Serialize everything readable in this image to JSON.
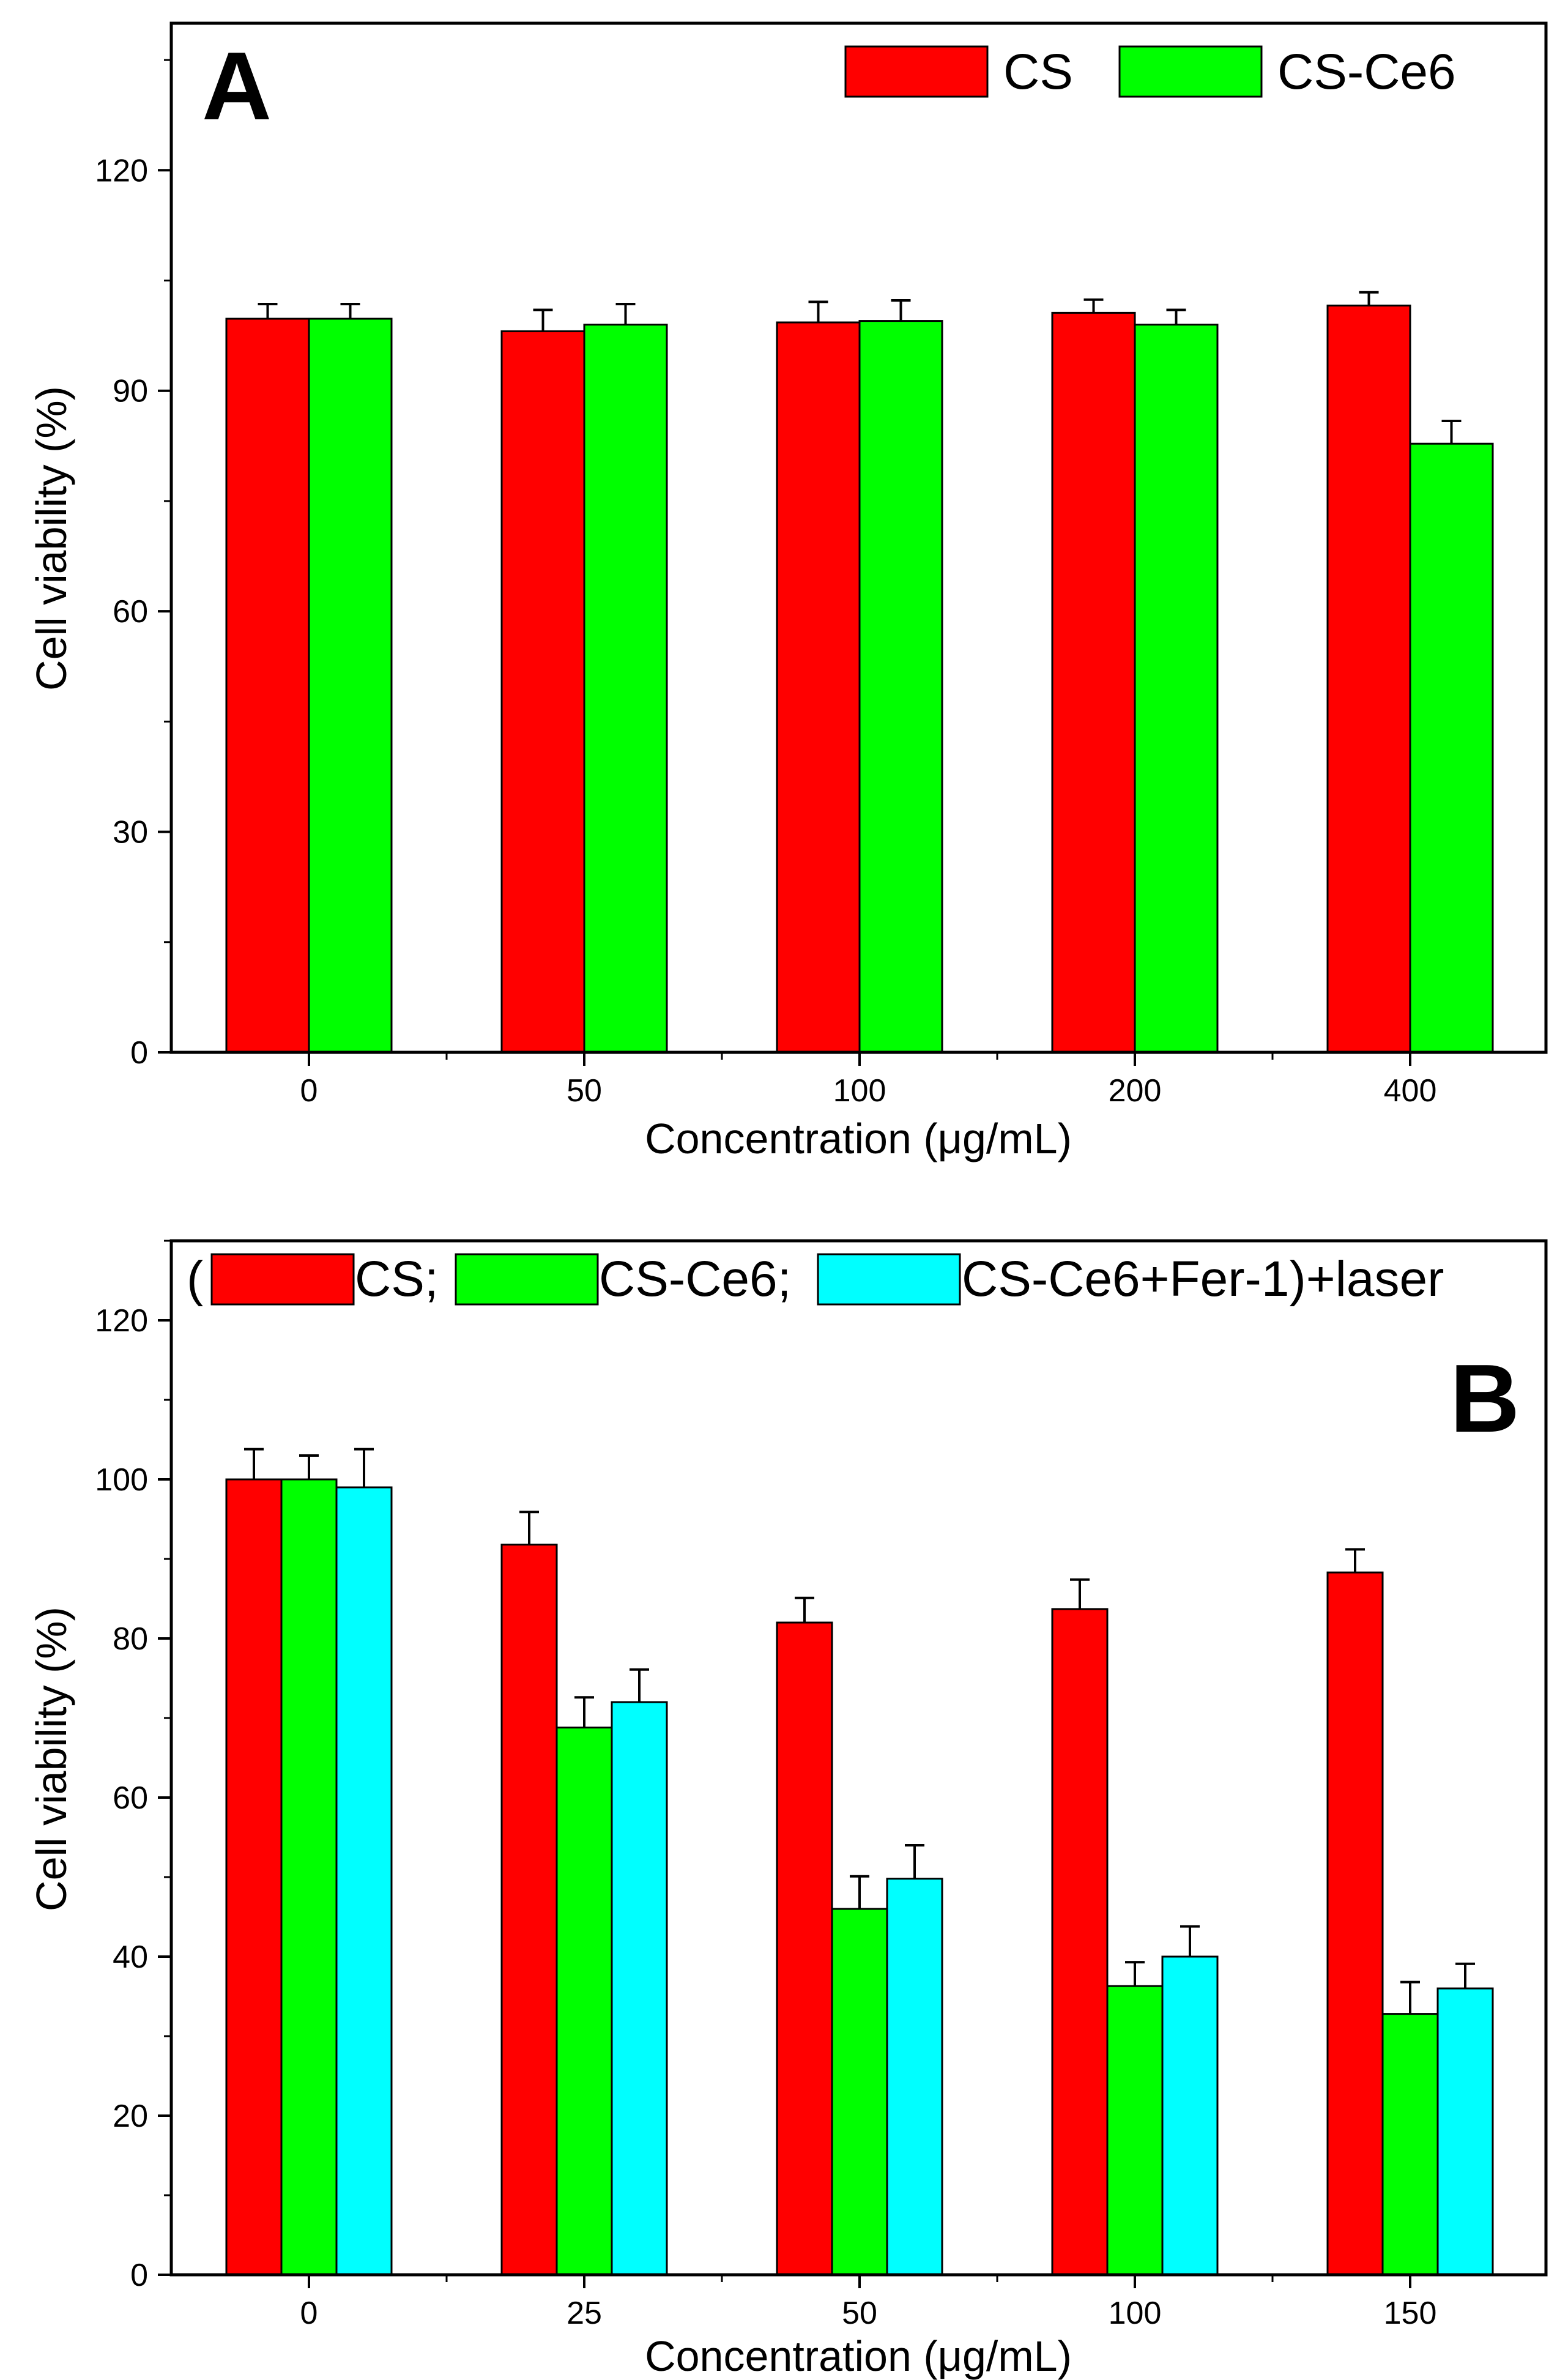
{
  "chart_data": [
    {
      "panel": "A",
      "type": "bar",
      "categories": [
        "0",
        "50",
        "100",
        "200",
        "400"
      ],
      "series": [
        {
          "name": "CS",
          "color": "#ff0000",
          "values": [
            99.8,
            98.1,
            99.3,
            100.6,
            101.6
          ],
          "errors": [
            2.0,
            2.9,
            2.8,
            1.8,
            1.8
          ]
        },
        {
          "name": "CS-Ce6",
          "color": "#00ff00",
          "values": [
            99.8,
            99.0,
            99.5,
            99.0,
            82.8
          ],
          "errors": [
            2.0,
            2.8,
            2.8,
            2.0,
            3.1
          ]
        }
      ],
      "legend": {
        "position": "top-right",
        "entries": [
          "CS",
          "CS-Ce6"
        ]
      },
      "xlabel": "Concentration (μg/mL)",
      "ylabel": "Cell viability (%)",
      "ylim": [
        0,
        140
      ],
      "yticks": [
        0,
        30,
        60,
        90,
        120
      ],
      "yticklabels": [
        "0",
        "30",
        "60",
        "90",
        "120"
      ],
      "minor_yticks": [
        15,
        45,
        75,
        105,
        135
      ],
      "grid": false
    },
    {
      "panel": "B",
      "type": "bar",
      "categories": [
        "0",
        "25",
        "50",
        "100",
        "150"
      ],
      "series": [
        {
          "name": "CS",
          "color": "#ff0000",
          "values": [
            100.0,
            91.8,
            82.0,
            83.7,
            88.3
          ],
          "errors": [
            3.8,
            4.1,
            3.1,
            3.7,
            2.9
          ]
        },
        {
          "name": "CS-Ce6",
          "color": "#00ff00",
          "values": [
            100.0,
            68.8,
            46.0,
            36.3,
            32.8
          ],
          "errors": [
            3.0,
            3.8,
            4.1,
            3.0,
            4.0
          ]
        },
        {
          "name": "CS-Ce6+Fer-1",
          "color": "#00ffff",
          "values": [
            99.0,
            72.0,
            49.8,
            40.0,
            36.0
          ],
          "errors": [
            4.8,
            4.1,
            4.2,
            3.8,
            3.1
          ]
        }
      ],
      "legend": {
        "position": "top",
        "open_paren": "(",
        "entries": [
          "CS;",
          "CS-Ce6;",
          "CS-Ce6+Fer-1)+laser"
        ]
      },
      "xlabel": "Concentration (μg/mL)",
      "ylabel": "Cell viability (%)",
      "ylim": [
        0,
        130
      ],
      "yticks": [
        0,
        20,
        40,
        60,
        80,
        100,
        120
      ],
      "yticklabels": [
        "0",
        "20",
        "40",
        "60",
        "80",
        "100",
        "120"
      ],
      "minor_yticks": [
        10,
        30,
        50,
        70,
        90,
        110,
        130
      ],
      "grid": false
    }
  ]
}
